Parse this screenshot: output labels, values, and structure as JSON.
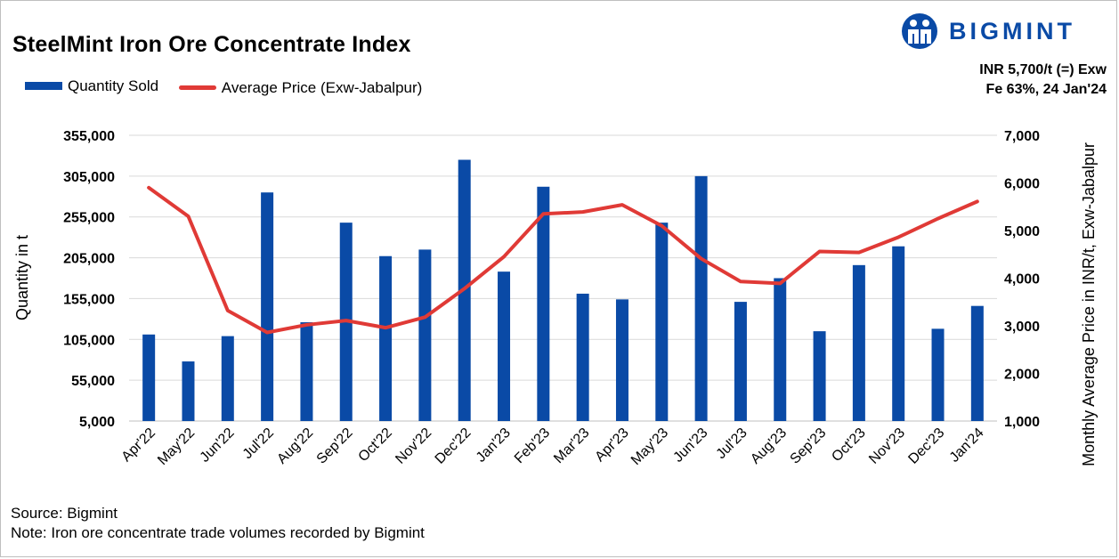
{
  "title": "SteelMint Iron Ore Concentrate Index",
  "logo": {
    "text": "BIGMINT",
    "icon": "bigmint-people-icon"
  },
  "price_note": {
    "line1": "INR 5,700/t (=) Exw",
    "line2": "Fe 63%, 24 Jan'24"
  },
  "footer": {
    "source": "Source: Bigmint",
    "note": "Note: Iron ore concentrate trade volumes recorded by Bigmint"
  },
  "colors": {
    "bar": "#0a4aa6",
    "line": "#e03a36",
    "logo": "#0a4aa6"
  },
  "chart_data": {
    "type": "bar",
    "categories": [
      "Apr'22",
      "May'22",
      "Jun'22",
      "Jul'22",
      "Aug'22",
      "Sep'22",
      "Oct'22",
      "Nov'22",
      "Dec'22",
      "Jan'23",
      "Feb'23",
      "Mar'23",
      "Apr'23",
      "May'23",
      "Jun'23",
      "Jul'23",
      "Aug'23",
      "Sep'23",
      "Oct'23",
      "Nov'23",
      "Dec'23",
      "Jan'24"
    ],
    "series": [
      {
        "name": "Quantity Sold",
        "type": "bar",
        "axis": "left",
        "values": [
          111000,
          78000,
          109000,
          285000,
          126000,
          248000,
          207000,
          215000,
          325000,
          188000,
          292000,
          161000,
          154000,
          248000,
          305000,
          151000,
          180000,
          115000,
          196000,
          219000,
          118000,
          146000
        ]
      },
      {
        "name": "Average Price (Exw-Jabalpur)",
        "type": "line",
        "axis": "right",
        "values": [
          5900,
          5300,
          3320,
          2860,
          3020,
          3110,
          2960,
          3180,
          3780,
          4450,
          5350,
          5390,
          5540,
          5100,
          4410,
          3930,
          3890,
          4560,
          4540,
          4860,
          5250,
          5610
        ]
      }
    ],
    "ylabel": "Quantity in t",
    "ylabel_right": "Monthly Average Price in INR/t, Exw-Jabalpur",
    "ylim": [
      5000,
      355000
    ],
    "yticks": [
      5000,
      55000,
      105000,
      155000,
      205000,
      255000,
      305000,
      355000
    ],
    "ytick_labels": [
      "5,000",
      "55,000",
      "105,000",
      "155,000",
      "205,000",
      "255,000",
      "305,000",
      "355,000"
    ],
    "ylim_right": [
      1000,
      7000
    ],
    "yticks_right": [
      1000,
      2000,
      3000,
      4000,
      5000,
      6000,
      7000
    ],
    "ytick_labels_right": [
      "1,000",
      "2,000",
      "3,000",
      "4,000",
      "5,000",
      "6,000",
      "7,000"
    ],
    "grid": true,
    "legend_position": "top-left"
  }
}
